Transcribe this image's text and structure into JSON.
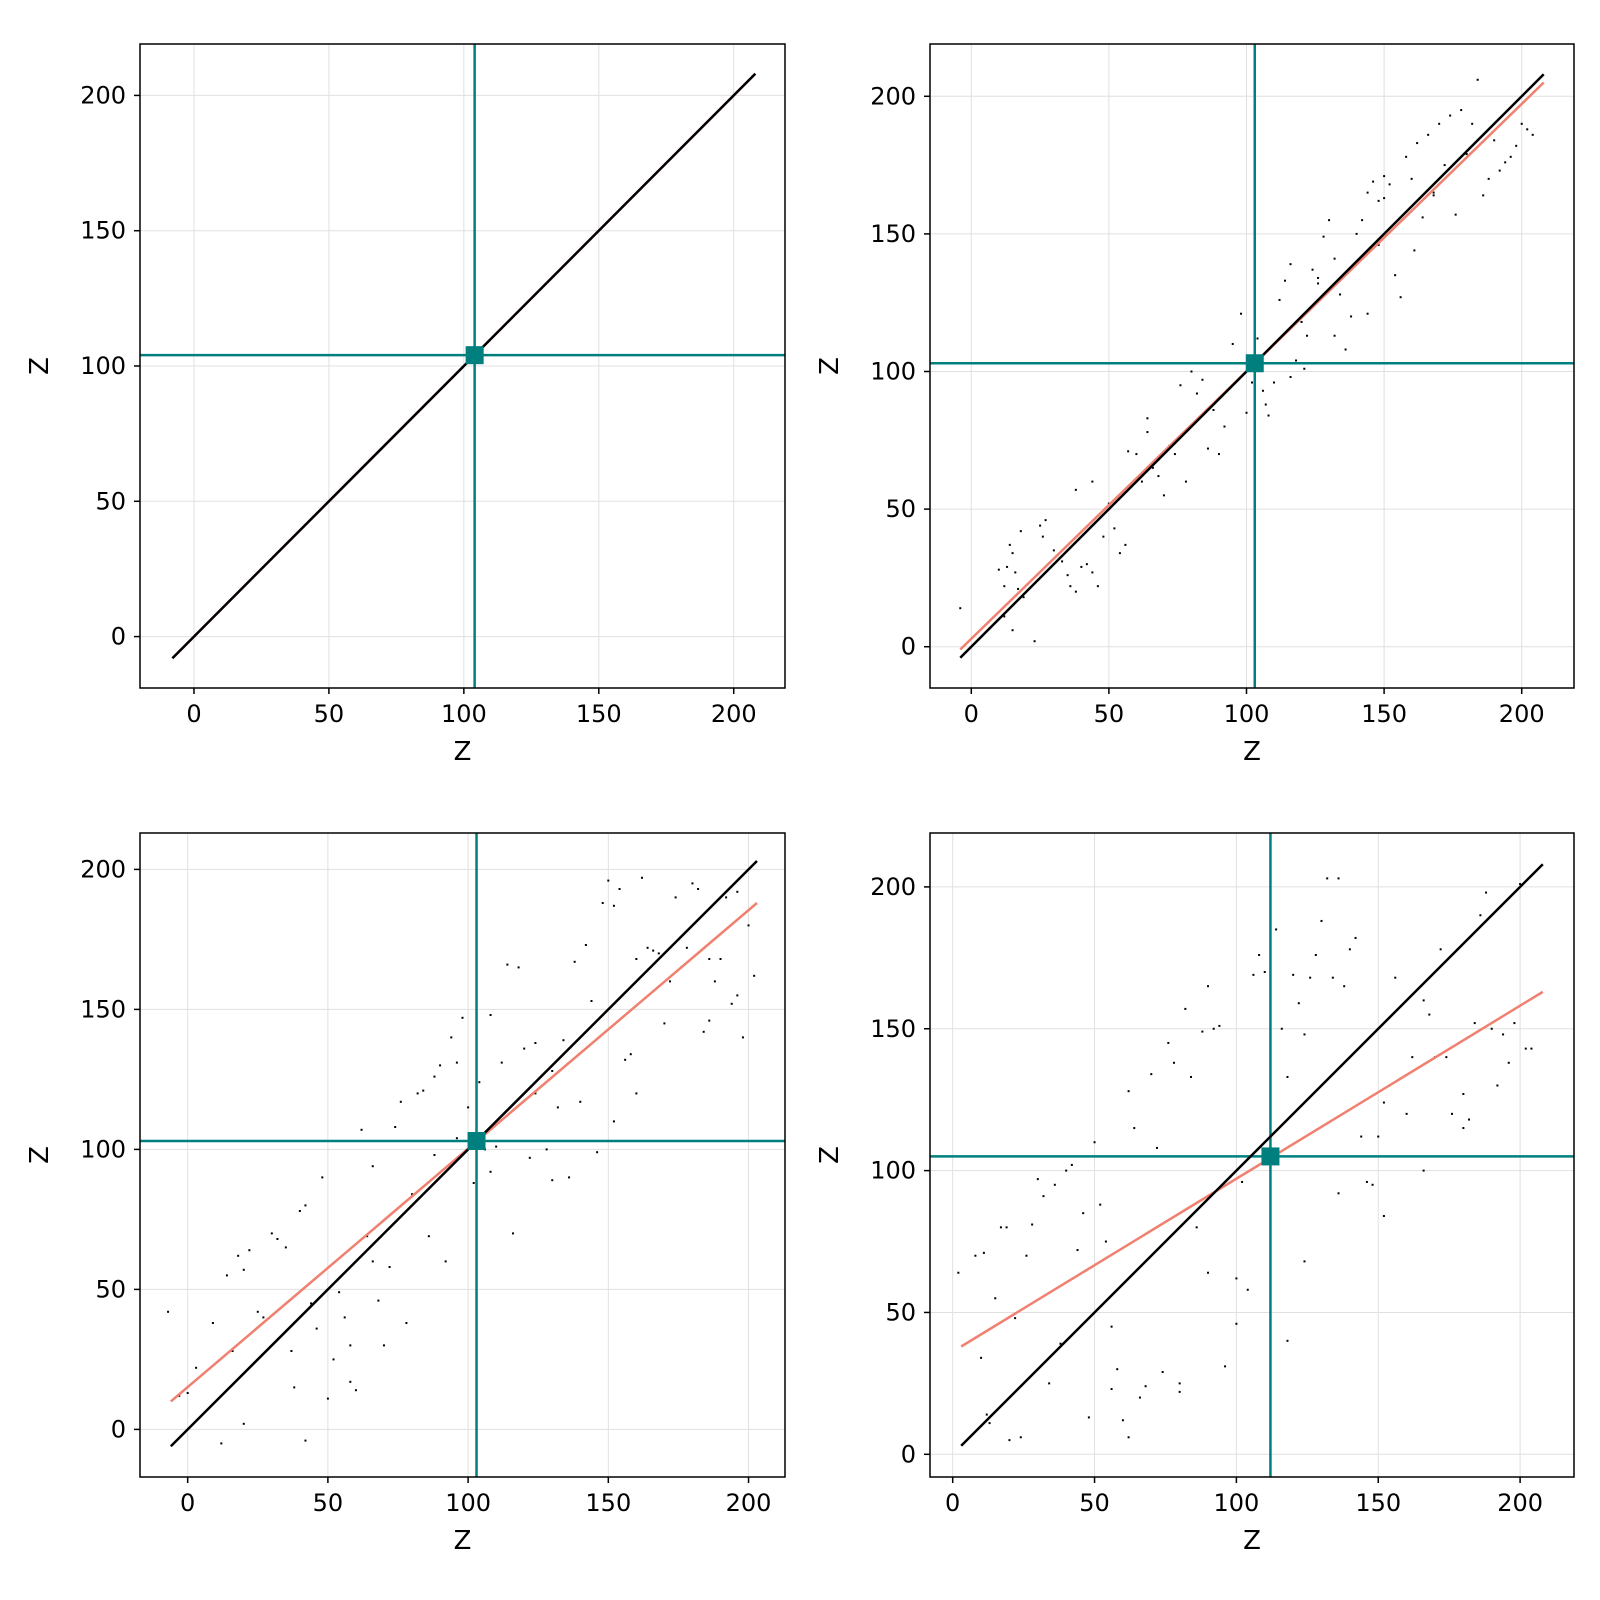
{
  "colors": {
    "identity_line": "#000000",
    "fit_line": "#f08070",
    "crosshair": "#007f7f",
    "points": "#000000",
    "grid": "#e0e0e0",
    "frame": "#000000"
  },
  "chart_data": [
    {
      "type": "scatter",
      "xlabel": "Z",
      "ylabel": "Z",
      "xlim": [
        -20,
        219
      ],
      "ylim": [
        -19,
        219
      ],
      "xticks": [
        0,
        50,
        100,
        150,
        200
      ],
      "yticks": [
        0,
        50,
        100,
        150,
        200
      ],
      "grid": true,
      "center": [
        104,
        104
      ],
      "identity_line": {
        "x": [
          -8,
          208
        ],
        "y": [
          -8,
          208
        ]
      },
      "fit_line": {
        "x": [
          -8,
          208
        ],
        "y": [
          -8,
          208
        ]
      },
      "points": []
    },
    {
      "type": "scatter",
      "xlabel": "Z",
      "ylabel": "Z",
      "xlim": [
        -15,
        219
      ],
      "ylim": [
        -15,
        219
      ],
      "xticks": [
        0,
        50,
        100,
        150,
        200
      ],
      "yticks": [
        0,
        50,
        100,
        150,
        200
      ],
      "grid": true,
      "center": [
        103,
        103
      ],
      "identity_line": {
        "x": [
          -4,
          208
        ],
        "y": [
          -4,
          208
        ]
      },
      "fit_line": {
        "x": [
          -4,
          208
        ],
        "y": [
          -1,
          205
        ]
      },
      "points": [
        [
          -4,
          14
        ],
        [
          10,
          28
        ],
        [
          12,
          22
        ],
        [
          13,
          29
        ],
        [
          14,
          37
        ],
        [
          15,
          34
        ],
        [
          16,
          27
        ],
        [
          17,
          21
        ],
        [
          18,
          42
        ],
        [
          19,
          18
        ],
        [
          12,
          11
        ],
        [
          15,
          6
        ],
        [
          23,
          2
        ],
        [
          25,
          44
        ],
        [
          27,
          46
        ],
        [
          30,
          35
        ],
        [
          33,
          31
        ],
        [
          35,
          26
        ],
        [
          36,
          22
        ],
        [
          38,
          57
        ],
        [
          40,
          29
        ],
        [
          38,
          20
        ],
        [
          42,
          30
        ],
        [
          44,
          27
        ],
        [
          46,
          22
        ],
        [
          48,
          40
        ],
        [
          50,
          52
        ],
        [
          52,
          43
        ],
        [
          54,
          34
        ],
        [
          56,
          37
        ],
        [
          57,
          71
        ],
        [
          60,
          70
        ],
        [
          62,
          60
        ],
        [
          64,
          83
        ],
        [
          66,
          65
        ],
        [
          68,
          62
        ],
        [
          70,
          55
        ],
        [
          72,
          73
        ],
        [
          74,
          70
        ],
        [
          76,
          95
        ],
        [
          78,
          60
        ],
        [
          80,
          100
        ],
        [
          82,
          92
        ],
        [
          84,
          97
        ],
        [
          86,
          72
        ],
        [
          88,
          86
        ],
        [
          90,
          70
        ],
        [
          92,
          80
        ],
        [
          95,
          110
        ],
        [
          98,
          121
        ],
        [
          100,
          85
        ],
        [
          102,
          96
        ],
        [
          104,
          112
        ],
        [
          106,
          93
        ],
        [
          108,
          84
        ],
        [
          110,
          96
        ],
        [
          112,
          126
        ],
        [
          114,
          133
        ],
        [
          116,
          139
        ],
        [
          118,
          104
        ],
        [
          120,
          118
        ],
        [
          122,
          113
        ],
        [
          124,
          137
        ],
        [
          126,
          132
        ],
        [
          128,
          149
        ],
        [
          130,
          155
        ],
        [
          132,
          141
        ],
        [
          134,
          128
        ],
        [
          136,
          108
        ],
        [
          138,
          120
        ],
        [
          140,
          150
        ],
        [
          142,
          155
        ],
        [
          144,
          165
        ],
        [
          146,
          169
        ],
        [
          148,
          162
        ],
        [
          150,
          171
        ],
        [
          152,
          168
        ],
        [
          154,
          135
        ],
        [
          156,
          127
        ],
        [
          158,
          178
        ],
        [
          160,
          170
        ],
        [
          162,
          183
        ],
        [
          164,
          156
        ],
        [
          166,
          186
        ],
        [
          168,
          164
        ],
        [
          170,
          190
        ],
        [
          172,
          175
        ],
        [
          174,
          193
        ],
        [
          176,
          157
        ],
        [
          178,
          195
        ],
        [
          180,
          179
        ],
        [
          182,
          190
        ],
        [
          184,
          206
        ],
        [
          186,
          164
        ],
        [
          188,
          170
        ],
        [
          190,
          184
        ],
        [
          192,
          173
        ],
        [
          194,
          176
        ],
        [
          196,
          178
        ],
        [
          198,
          182
        ],
        [
          200,
          190
        ],
        [
          204,
          186
        ],
        [
          202,
          188
        ],
        [
          132,
          113
        ],
        [
          144,
          121
        ],
        [
          148,
          146
        ],
        [
          161,
          144
        ],
        [
          116,
          98
        ],
        [
          121,
          101
        ],
        [
          107,
          88
        ],
        [
          126,
          134
        ],
        [
          150,
          163
        ],
        [
          168,
          165
        ],
        [
          26,
          40
        ],
        [
          44,
          60
        ],
        [
          64,
          78
        ]
      ]
    },
    {
      "type": "scatter",
      "xlabel": "Z",
      "ylabel": "Z",
      "xlim": [
        -17,
        213
      ],
      "ylim": [
        -17,
        213
      ],
      "xticks": [
        0,
        50,
        100,
        150,
        200
      ],
      "yticks": [
        0,
        50,
        100,
        150,
        200
      ],
      "grid": true,
      "center": [
        103,
        103
      ],
      "identity_line": {
        "x": [
          -6,
          203
        ],
        "y": [
          -6,
          203
        ]
      },
      "fit_line": {
        "x": [
          -6,
          203
        ],
        "y": [
          10,
          188
        ]
      },
      "points": [
        [
          -7,
          42
        ],
        [
          -3,
          12
        ],
        [
          0,
          13
        ],
        [
          3,
          22
        ],
        [
          9,
          38
        ],
        [
          12,
          -5
        ],
        [
          14,
          55
        ],
        [
          16,
          28
        ],
        [
          18,
          62
        ],
        [
          20,
          57
        ],
        [
          20,
          2
        ],
        [
          22,
          64
        ],
        [
          25,
          42
        ],
        [
          27,
          40
        ],
        [
          30,
          70
        ],
        [
          32,
          68
        ],
        [
          35,
          65
        ],
        [
          37,
          28
        ],
        [
          38,
          15
        ],
        [
          40,
          78
        ],
        [
          42,
          80
        ],
        [
          44,
          45
        ],
        [
          46,
          36
        ],
        [
          48,
          90
        ],
        [
          50,
          11
        ],
        [
          52,
          25
        ],
        [
          54,
          49
        ],
        [
          56,
          40
        ],
        [
          58,
          17
        ],
        [
          60,
          14
        ],
        [
          62,
          107
        ],
        [
          64,
          69
        ],
        [
          66,
          60
        ],
        [
          68,
          46
        ],
        [
          70,
          30
        ],
        [
          72,
          58
        ],
        [
          74,
          108
        ],
        [
          76,
          117
        ],
        [
          78,
          38
        ],
        [
          80,
          84
        ],
        [
          82,
          120
        ],
        [
          84,
          121
        ],
        [
          86,
          69
        ],
        [
          88,
          126
        ],
        [
          90,
          130
        ],
        [
          92,
          60
        ],
        [
          94,
          140
        ],
        [
          96,
          131
        ],
        [
          98,
          147
        ],
        [
          100,
          115
        ],
        [
          102,
          88
        ],
        [
          104,
          124
        ],
        [
          106,
          100
        ],
        [
          108,
          148
        ],
        [
          110,
          101
        ],
        [
          112,
          131
        ],
        [
          114,
          166
        ],
        [
          116,
          70
        ],
        [
          118,
          165
        ],
        [
          120,
          136
        ],
        [
          122,
          97
        ],
        [
          124,
          138
        ],
        [
          126,
          126
        ],
        [
          128,
          100
        ],
        [
          130,
          89
        ],
        [
          132,
          115
        ],
        [
          134,
          139
        ],
        [
          136,
          90
        ],
        [
          138,
          167
        ],
        [
          140,
          117
        ],
        [
          142,
          173
        ],
        [
          144,
          153
        ],
        [
          146,
          99
        ],
        [
          148,
          188
        ],
        [
          150,
          196
        ],
        [
          152,
          187
        ],
        [
          154,
          193
        ],
        [
          156,
          132
        ],
        [
          158,
          134
        ],
        [
          160,
          120
        ],
        [
          162,
          197
        ],
        [
          164,
          172
        ],
        [
          166,
          171
        ],
        [
          168,
          170
        ],
        [
          170,
          145
        ],
        [
          172,
          160
        ],
        [
          174,
          190
        ],
        [
          176,
          165
        ],
        [
          178,
          172
        ],
        [
          180,
          195
        ],
        [
          182,
          193
        ],
        [
          184,
          142
        ],
        [
          186,
          146
        ],
        [
          188,
          160
        ],
        [
          190,
          168
        ],
        [
          192,
          190
        ],
        [
          194,
          152
        ],
        [
          196,
          155
        ],
        [
          198,
          140
        ],
        [
          200,
          180
        ],
        [
          202,
          162
        ],
        [
          196,
          192
        ],
        [
          186,
          168
        ],
        [
          42,
          -4
        ],
        [
          58,
          30
        ],
        [
          96,
          104
        ],
        [
          108,
          92
        ],
        [
          152,
          110
        ],
        [
          130,
          128
        ],
        [
          160,
          168
        ],
        [
          66,
          94
        ],
        [
          88,
          98
        ],
        [
          124,
          120
        ]
      ]
    },
    {
      "type": "scatter",
      "xlabel": "Z",
      "ylabel": "Z",
      "xlim": [
        -8,
        219
      ],
      "ylim": [
        -8,
        219
      ],
      "xticks": [
        0,
        50,
        100,
        150,
        200
      ],
      "yticks": [
        0,
        50,
        100,
        150,
        200
      ],
      "grid": true,
      "center": [
        112,
        105
      ],
      "identity_line": {
        "x": [
          3,
          208
        ],
        "y": [
          3,
          208
        ]
      },
      "fit_line": {
        "x": [
          3,
          208
        ],
        "y": [
          38,
          163
        ]
      },
      "points": [
        [
          2,
          64
        ],
        [
          8,
          70
        ],
        [
          10,
          34
        ],
        [
          11,
          71
        ],
        [
          12,
          14
        ],
        [
          13,
          11
        ],
        [
          15,
          55
        ],
        [
          17,
          80
        ],
        [
          19,
          80
        ],
        [
          20,
          5
        ],
        [
          22,
          48
        ],
        [
          24,
          6
        ],
        [
          26,
          70
        ],
        [
          28,
          81
        ],
        [
          30,
          97
        ],
        [
          32,
          91
        ],
        [
          34,
          25
        ],
        [
          36,
          95
        ],
        [
          38,
          39
        ],
        [
          40,
          100
        ],
        [
          42,
          102
        ],
        [
          44,
          72
        ],
        [
          46,
          85
        ],
        [
          48,
          13
        ],
        [
          50,
          110
        ],
        [
          52,
          88
        ],
        [
          54,
          75
        ],
        [
          56,
          23
        ],
        [
          58,
          30
        ],
        [
          60,
          12
        ],
        [
          62,
          128
        ],
        [
          64,
          115
        ],
        [
          66,
          20
        ],
        [
          68,
          24
        ],
        [
          70,
          134
        ],
        [
          72,
          108
        ],
        [
          74,
          29
        ],
        [
          76,
          145
        ],
        [
          78,
          138
        ],
        [
          80,
          25
        ],
        [
          82,
          157
        ],
        [
          84,
          133
        ],
        [
          86,
          80
        ],
        [
          88,
          149
        ],
        [
          90,
          165
        ],
        [
          92,
          150
        ],
        [
          94,
          151
        ],
        [
          96,
          31
        ],
        [
          98,
          98
        ],
        [
          100,
          62
        ],
        [
          102,
          96
        ],
        [
          104,
          58
        ],
        [
          106,
          169
        ],
        [
          108,
          176
        ],
        [
          110,
          170
        ],
        [
          112,
          190
        ],
        [
          114,
          185
        ],
        [
          116,
          150
        ],
        [
          118,
          133
        ],
        [
          120,
          169
        ],
        [
          122,
          159
        ],
        [
          124,
          148
        ],
        [
          126,
          168
        ],
        [
          128,
          176
        ],
        [
          130,
          188
        ],
        [
          132,
          203
        ],
        [
          134,
          168
        ],
        [
          136,
          203
        ],
        [
          138,
          165
        ],
        [
          140,
          178
        ],
        [
          142,
          182
        ],
        [
          144,
          112
        ],
        [
          146,
          96
        ],
        [
          148,
          95
        ],
        [
          150,
          112
        ],
        [
          152,
          124
        ],
        [
          154,
          130
        ],
        [
          156,
          168
        ],
        [
          158,
          158
        ],
        [
          160,
          120
        ],
        [
          162,
          140
        ],
        [
          164,
          105
        ],
        [
          166,
          160
        ],
        [
          168,
          155
        ],
        [
          170,
          140
        ],
        [
          172,
          178
        ],
        [
          174,
          140
        ],
        [
          176,
          120
        ],
        [
          178,
          178
        ],
        [
          180,
          115
        ],
        [
          182,
          118
        ],
        [
          184,
          152
        ],
        [
          186,
          190
        ],
        [
          188,
          198
        ],
        [
          190,
          150
        ],
        [
          192,
          130
        ],
        [
          194,
          148
        ],
        [
          196,
          138
        ],
        [
          198,
          152
        ],
        [
          200,
          201
        ],
        [
          202,
          143
        ],
        [
          204,
          143
        ],
        [
          62,
          6
        ],
        [
          80,
          22
        ],
        [
          100,
          46
        ],
        [
          118,
          40
        ],
        [
          136,
          92
        ],
        [
          152,
          84
        ],
        [
          166,
          100
        ],
        [
          180,
          127
        ],
        [
          56,
          45
        ],
        [
          90,
          64
        ],
        [
          124,
          68
        ]
      ]
    }
  ]
}
